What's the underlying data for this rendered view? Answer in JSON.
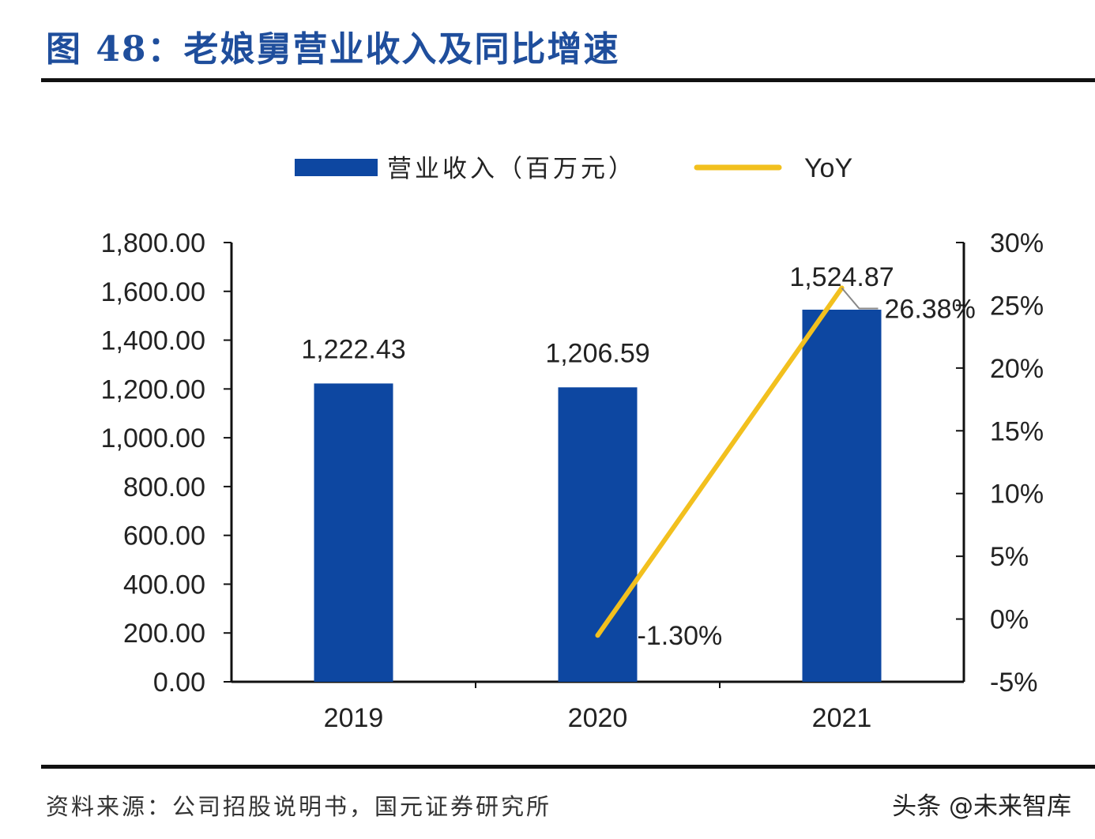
{
  "figure": {
    "title": "图 48：老娘舅营业收入及同比增速",
    "source": "资料来源：公司招股说明书，国元证券研究所",
    "watermark": "头条 @未来智库"
  },
  "colors": {
    "title": "#1f4e9c",
    "bar": "#0d47a1",
    "line": "#f2c01e",
    "axis": "#111111",
    "text": "#222222"
  },
  "chart_data": {
    "type": "bar",
    "categories": [
      "2019",
      "2020",
      "2021"
    ],
    "series": [
      {
        "name": "营业收入（百万元）",
        "type": "bar",
        "axis": "left",
        "values": [
          1222.43,
          1206.59,
          1524.87
        ],
        "labels": [
          "1,222.43",
          "1,206.59",
          "1,524.87"
        ]
      },
      {
        "name": "YoY",
        "type": "line",
        "axis": "right",
        "values": [
          null,
          -1.3,
          26.38
        ],
        "labels": [
          "",
          "-1.30%",
          "26.38%"
        ]
      }
    ],
    "ylim": [
      0,
      1800
    ],
    "y_ticks": [
      "0.00",
      "200.00",
      "400.00",
      "600.00",
      "800.00",
      "1,000.00",
      "1,200.00",
      "1,400.00",
      "1,600.00",
      "1,800.00"
    ],
    "y2lim": [
      -5,
      30
    ],
    "y2_ticks": [
      "-5%",
      "0%",
      "5%",
      "10%",
      "15%",
      "20%",
      "25%",
      "30%"
    ],
    "legend_position": "top-center",
    "grid": false
  }
}
